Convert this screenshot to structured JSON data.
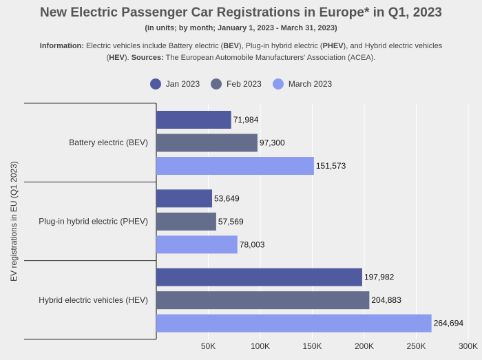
{
  "header": {
    "title": "New Electric Passenger Car Registrations in Europe* in Q1, 2023",
    "subtitle": "(in units; by month; January 1, 2023 - March 31, 2023)",
    "info_label": "Information:",
    "info_text_1": "Electric vehicles include Battery electric (",
    "info_bev": "BEV",
    "info_text_2": "), Plug-in hybrid electric (",
    "info_phev": "PHEV",
    "info_text_3": "), and Hybrid electric vehicles (",
    "info_hev": "HEV",
    "info_text_4": ").",
    "sources_label": "Sources:",
    "sources_text": "The European Automobile Manufacturers' Association (ACEA)."
  },
  "colors": {
    "jan": "#4f5b9e",
    "feb": "#646e8c",
    "mar": "#8b9cf0",
    "axis": "#333333",
    "grid": "#ffffff"
  },
  "chart_data": {
    "type": "bar",
    "orientation": "horizontal",
    "categories": [
      "Battery electric (BEV)",
      "Plug-in hybrid electric (PHEV)",
      "Hybrid electric vehicles (HEV)"
    ],
    "series": [
      {
        "name": "Jan 2023",
        "values": [
          71984,
          53649,
          197982
        ]
      },
      {
        "name": "Feb 2023",
        "values": [
          97300,
          57569,
          204883
        ]
      },
      {
        "name": "March 2023",
        "values": [
          151573,
          78003,
          264694
        ]
      }
    ],
    "value_labels": [
      [
        "71,984",
        "53,649",
        "197,982"
      ],
      [
        "97,300",
        "57,569",
        "204,883"
      ],
      [
        "151,573",
        "78,003",
        "264,694"
      ]
    ],
    "xticks": [
      {
        "value": 50000,
        "label": "50K"
      },
      {
        "value": 100000,
        "label": "100K"
      },
      {
        "value": 150000,
        "label": "150K"
      },
      {
        "value": 200000,
        "label": "200K"
      },
      {
        "value": 250000,
        "label": "250K"
      },
      {
        "value": 300000,
        "label": "300K"
      }
    ],
    "xlim": [
      0,
      300000
    ],
    "xlabel": "",
    "ylabel": "EV registrations in EU (Q1 2023)",
    "legend_position": "top",
    "grid": true
  }
}
